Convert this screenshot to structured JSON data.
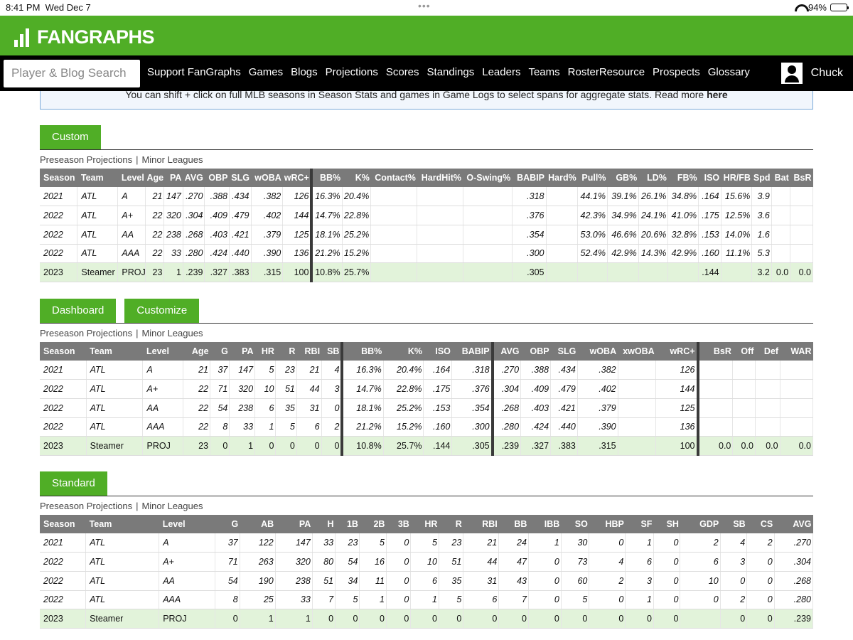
{
  "status": {
    "time": "8:41 PM",
    "date": "Wed Dec 7",
    "battery": "94%"
  },
  "brand": {
    "name": "FANGRAPHS",
    "color": "#50ae26"
  },
  "search": {
    "placeholder": "Player & Blog Search"
  },
  "nav": [
    "Support FanGraphs",
    "Games",
    "Blogs",
    "Projections",
    "Scores",
    "Standings",
    "Leaders",
    "Teams",
    "RosterResource",
    "Prospects",
    "Glossary"
  ],
  "user": {
    "name": "Chuck",
    "icon": "user-icon"
  },
  "notice": {
    "text": "You can shift + click on full MLB seasons in Season Stats and games in Game Logs to select spans for aggregate stats. Read more ",
    "link": "here"
  },
  "sub_tabs": {
    "preseason": "Preseason Projections",
    "sep": "|",
    "minors": "Minor Leagues"
  },
  "custom": {
    "tabs": [
      "Custom"
    ],
    "columns": [
      "Season",
      "Team",
      "Level",
      "Age",
      "PA",
      "AVG",
      "OBP",
      "SLG",
      "wOBA",
      "wRC+",
      "BB%",
      "K%",
      "Contact%",
      "HardHit%",
      "O-Swing%",
      "BABIP",
      "Hard%",
      "Pull%",
      "GB%",
      "LD%",
      "FB%",
      "ISO",
      "HR/FB",
      "Spd",
      "Bat",
      "BsR"
    ],
    "rows": [
      [
        "2021",
        "ATL",
        "A",
        "21",
        "147",
        ".270",
        ".388",
        ".434",
        ".382",
        "126",
        "16.3%",
        "20.4%",
        "",
        "",
        "",
        ".318",
        "",
        "44.1%",
        "39.1%",
        "26.1%",
        "34.8%",
        ".164",
        "15.6%",
        "3.9",
        "",
        ""
      ],
      [
        "2022",
        "ATL",
        "A+",
        "22",
        "320",
        ".304",
        ".409",
        ".479",
        ".402",
        "144",
        "14.7%",
        "22.8%",
        "",
        "",
        "",
        ".376",
        "",
        "42.3%",
        "34.9%",
        "24.1%",
        "41.0%",
        ".175",
        "12.5%",
        "3.6",
        "",
        ""
      ],
      [
        "2022",
        "ATL",
        "AA",
        "22",
        "238",
        ".268",
        ".403",
        ".421",
        ".379",
        "125",
        "18.1%",
        "25.2%",
        "",
        "",
        "",
        ".354",
        "",
        "53.0%",
        "46.6%",
        "20.6%",
        "32.8%",
        ".153",
        "14.0%",
        "1.6",
        "",
        ""
      ],
      [
        "2022",
        "ATL",
        "AAA",
        "22",
        "33",
        ".280",
        ".424",
        ".440",
        ".390",
        "136",
        "21.2%",
        "15.2%",
        "",
        "",
        "",
        ".300",
        "",
        "52.4%",
        "42.9%",
        "14.3%",
        "42.9%",
        ".160",
        "11.1%",
        "5.3",
        "",
        ""
      ],
      [
        "2023",
        "Steamer",
        "PROJ",
        "23",
        "1",
        ".239",
        ".327",
        ".383",
        ".315",
        "100",
        "10.8%",
        "25.7%",
        "",
        "",
        "",
        ".305",
        "",
        "",
        "",
        "",
        "",
        ".144",
        "",
        "3.2",
        "0.0",
        "0.0"
      ]
    ]
  },
  "dashboard": {
    "tabs": [
      "Dashboard",
      "Customize"
    ],
    "columns": [
      "Season",
      "Team",
      "Level",
      "Age",
      "G",
      "PA",
      "HR",
      "R",
      "RBI",
      "SB",
      "BB%",
      "K%",
      "ISO",
      "BABIP",
      "AVG",
      "OBP",
      "SLG",
      "wOBA",
      "xwOBA",
      "wRC+",
      "BsR",
      "Off",
      "Def",
      "WAR"
    ],
    "rows": [
      [
        "2021",
        "ATL",
        "A",
        "21",
        "37",
        "147",
        "5",
        "23",
        "21",
        "4",
        "16.3%",
        "20.4%",
        ".164",
        ".318",
        ".270",
        ".388",
        ".434",
        ".382",
        "",
        "126",
        "",
        "",
        "",
        ""
      ],
      [
        "2022",
        "ATL",
        "A+",
        "22",
        "71",
        "320",
        "10",
        "51",
        "44",
        "3",
        "14.7%",
        "22.8%",
        ".175",
        ".376",
        ".304",
        ".409",
        ".479",
        ".402",
        "",
        "144",
        "",
        "",
        "",
        ""
      ],
      [
        "2022",
        "ATL",
        "AA",
        "22",
        "54",
        "238",
        "6",
        "35",
        "31",
        "0",
        "18.1%",
        "25.2%",
        ".153",
        ".354",
        ".268",
        ".403",
        ".421",
        ".379",
        "",
        "125",
        "",
        "",
        "",
        ""
      ],
      [
        "2022",
        "ATL",
        "AAA",
        "22",
        "8",
        "33",
        "1",
        "5",
        "6",
        "2",
        "21.2%",
        "15.2%",
        ".160",
        ".300",
        ".280",
        ".424",
        ".440",
        ".390",
        "",
        "136",
        "",
        "",
        "",
        ""
      ],
      [
        "2023",
        "Steamer",
        "PROJ",
        "23",
        "0",
        "1",
        "0",
        "0",
        "0",
        "0",
        "10.8%",
        "25.7%",
        ".144",
        ".305",
        ".239",
        ".327",
        ".383",
        ".315",
        "",
        "100",
        "0.0",
        "0.0",
        "0.0",
        "0.0"
      ]
    ]
  },
  "standard": {
    "tabs": [
      "Standard"
    ],
    "columns": [
      "Season",
      "Team",
      "Level",
      "G",
      "AB",
      "PA",
      "H",
      "1B",
      "2B",
      "3B",
      "HR",
      "R",
      "RBI",
      "BB",
      "IBB",
      "SO",
      "HBP",
      "SF",
      "SH",
      "GDP",
      "SB",
      "CS",
      "AVG"
    ],
    "rows": [
      [
        "2021",
        "ATL",
        "A",
        "37",
        "122",
        "147",
        "33",
        "23",
        "5",
        "0",
        "5",
        "23",
        "21",
        "24",
        "1",
        "30",
        "0",
        "1",
        "0",
        "2",
        "4",
        "2",
        ".270"
      ],
      [
        "2022",
        "ATL",
        "A+",
        "71",
        "263",
        "320",
        "80",
        "54",
        "16",
        "0",
        "10",
        "51",
        "44",
        "47",
        "0",
        "73",
        "4",
        "6",
        "0",
        "6",
        "3",
        "0",
        ".304"
      ],
      [
        "2022",
        "ATL",
        "AA",
        "54",
        "190",
        "238",
        "51",
        "34",
        "11",
        "0",
        "6",
        "35",
        "31",
        "43",
        "0",
        "60",
        "2",
        "3",
        "0",
        "10",
        "0",
        "0",
        ".268"
      ],
      [
        "2022",
        "ATL",
        "AAA",
        "8",
        "25",
        "33",
        "7",
        "5",
        "1",
        "0",
        "1",
        "5",
        "6",
        "7",
        "0",
        "5",
        "0",
        "1",
        "0",
        "0",
        "2",
        "0",
        ".280"
      ],
      [
        "2023",
        "Steamer",
        "PROJ",
        "0",
        "1",
        "1",
        "0",
        "0",
        "0",
        "0",
        "0",
        "0",
        "0",
        "0",
        "0",
        "0",
        "0",
        "0",
        "0",
        "",
        "0",
        "0",
        ".239"
      ]
    ]
  }
}
